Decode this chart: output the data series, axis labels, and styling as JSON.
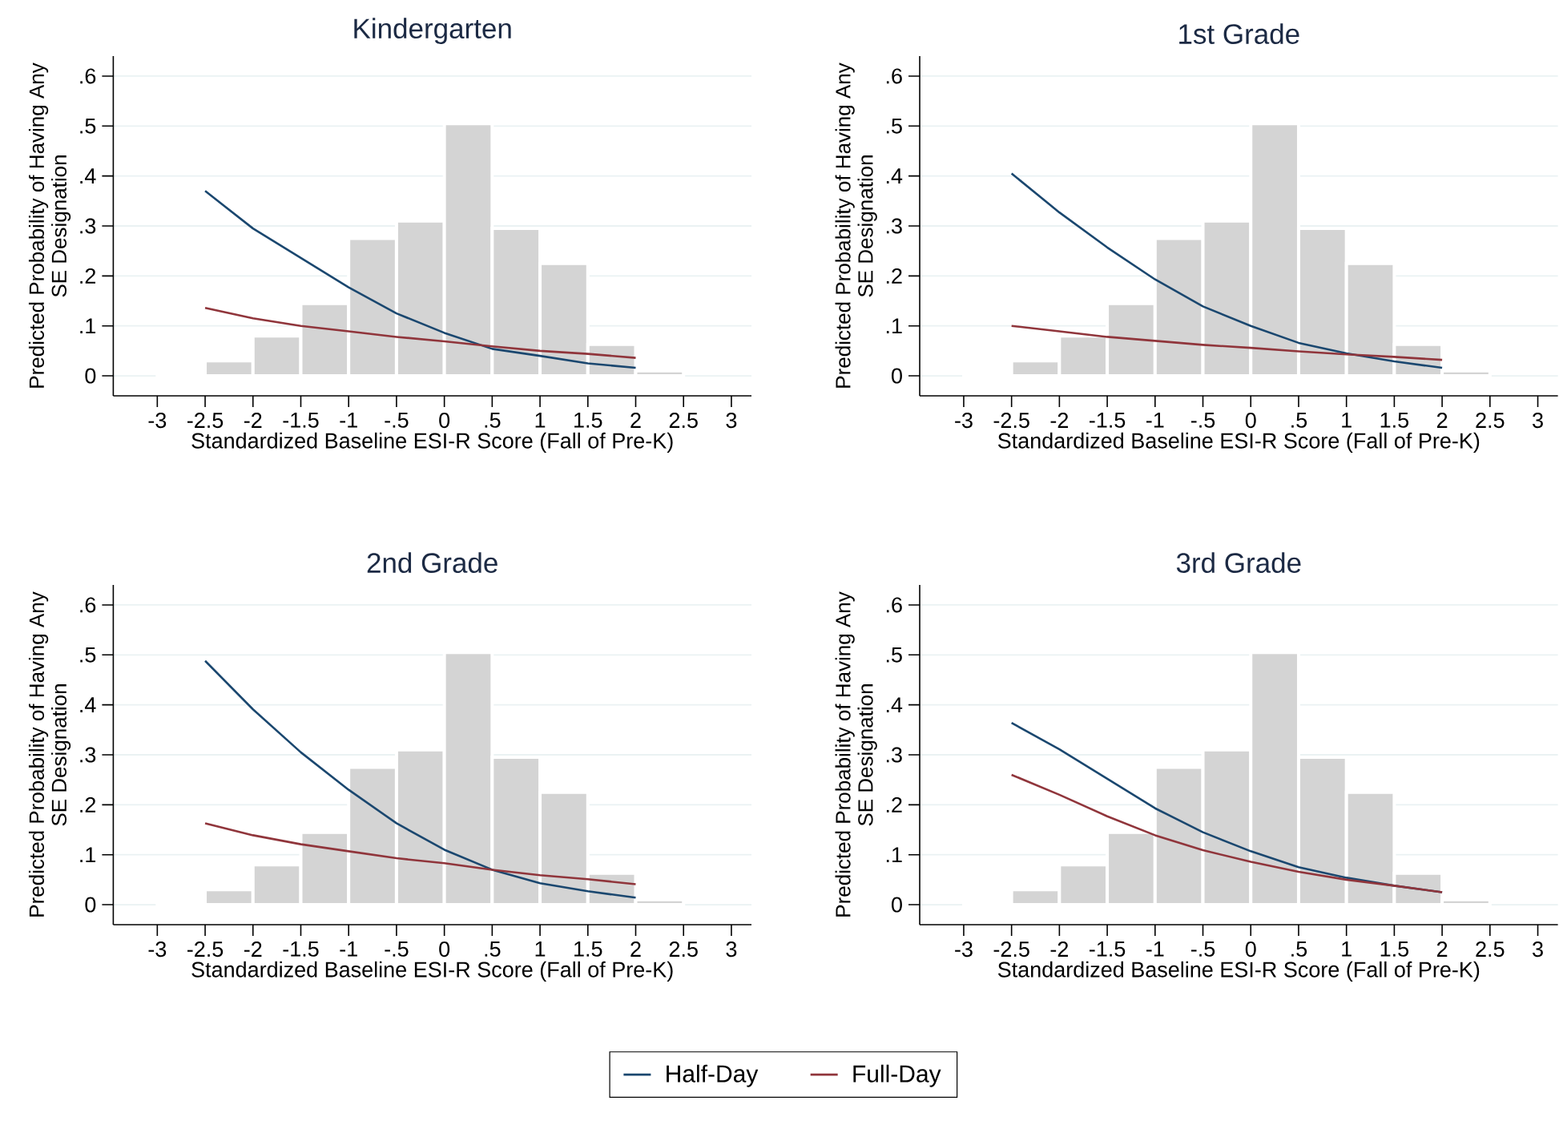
{
  "chart_data": [
    {
      "type": "line",
      "title": "Kindergarten",
      "xlabel": "Standardized Baseline ESI-R Score (Fall of Pre-K)",
      "ylabel": "Predicted Probability of Having Any SE Designation",
      "xlim": [
        -3.46,
        3.21
      ],
      "ylim": [
        -0.04,
        0.64
      ],
      "xticks": [
        -3,
        {
          "value": -2.5,
          "label": "-2.5"
        },
        -2,
        {
          "value": -1.5,
          "label": "-1.5"
        },
        -1,
        {
          "value": -0.5,
          "label": "-.5"
        },
        0,
        {
          "value": 0.5,
          "label": ".5"
        },
        1,
        {
          "value": 1.5,
          "label": "1.5"
        },
        2,
        {
          "value": 2.5,
          "label": "2.5"
        },
        3
      ],
      "yticks": [
        0,
        {
          "value": 0.1,
          "label": ".1"
        },
        {
          "value": 0.2,
          "label": ".2"
        },
        {
          "value": 0.3,
          "label": ".3"
        },
        {
          "value": 0.4,
          "label": ".4"
        },
        {
          "value": 0.5,
          "label": ".5"
        },
        {
          "value": 0.6,
          "label": ".6"
        }
      ],
      "grid": "y",
      "x": [
        -2.5,
        -2,
        -1.5,
        -1,
        -0.5,
        0,
        0.5,
        1,
        1.5,
        2
      ],
      "series": [
        {
          "type": "histogram",
          "color": "#d4d4d4",
          "bins": [
            -3,
            -2.5,
            -2,
            -1.5,
            -1,
            -0.5,
            0,
            0.5,
            1,
            1.5,
            2,
            2.5
          ],
          "values": [
            0.002,
            0.03,
            0.08,
            0.145,
            0.275,
            0.31,
            0.505,
            0.295,
            0.225,
            0.063,
            0.01
          ]
        },
        {
          "color": "#1a476f",
          "values": [
            0.37,
            0.295,
            0.236,
            0.177,
            0.125,
            0.086,
            0.054,
            0.04,
            0.025,
            0.016
          ]
        },
        {
          "color": "#90353b",
          "values": [
            0.136,
            0.115,
            0.1,
            0.089,
            0.078,
            0.069,
            0.059,
            0.05,
            0.044,
            0.036
          ]
        }
      ]
    },
    {
      "type": "line",
      "title": "1st Grade",
      "xlabel": "Standardized Baseline ESI-R Score (Fall of Pre-K)",
      "ylabel": "Predicted Probability of Having Any SE Designation",
      "xlim": [
        -3.46,
        3.21
      ],
      "ylim": [
        -0.04,
        0.64
      ],
      "xticks": [
        -3,
        {
          "value": -2.5,
          "label": "-2.5"
        },
        -2,
        {
          "value": -1.5,
          "label": "-1.5"
        },
        -1,
        {
          "value": -0.5,
          "label": "-.5"
        },
        0,
        {
          "value": 0.5,
          "label": ".5"
        },
        1,
        {
          "value": 1.5,
          "label": "1.5"
        },
        2,
        {
          "value": 2.5,
          "label": "2.5"
        },
        3
      ],
      "yticks": [
        0,
        {
          "value": 0.1,
          "label": ".1"
        },
        {
          "value": 0.2,
          "label": ".2"
        },
        {
          "value": 0.3,
          "label": ".3"
        },
        {
          "value": 0.4,
          "label": ".4"
        },
        {
          "value": 0.5,
          "label": ".5"
        },
        {
          "value": 0.6,
          "label": ".6"
        }
      ],
      "grid": "y",
      "x": [
        -2.5,
        -2,
        -1.5,
        -1,
        -0.5,
        0,
        0.5,
        1,
        1.5,
        2
      ],
      "series": [
        {
          "type": "histogram",
          "color": "#d4d4d4",
          "bins": [
            -3,
            -2.5,
            -2,
            -1.5,
            -1,
            -0.5,
            0,
            0.5,
            1,
            1.5,
            2,
            2.5
          ],
          "values": [
            0.002,
            0.03,
            0.08,
            0.145,
            0.275,
            0.31,
            0.505,
            0.295,
            0.225,
            0.063,
            0.01
          ]
        },
        {
          "color": "#1a476f",
          "values": [
            0.405,
            0.327,
            0.257,
            0.193,
            0.139,
            0.1,
            0.066,
            0.045,
            0.029,
            0.016
          ]
        },
        {
          "color": "#90353b",
          "values": [
            0.1,
            0.089,
            0.078,
            0.07,
            0.062,
            0.056,
            0.049,
            0.043,
            0.038,
            0.032
          ]
        }
      ]
    },
    {
      "type": "line",
      "title": "2nd Grade",
      "xlabel": "Standardized Baseline ESI-R Score (Fall of Pre-K)",
      "ylabel": "Predicted Probability of Having Any SE Designation",
      "xlim": [
        -3.46,
        3.21
      ],
      "ylim": [
        -0.04,
        0.64
      ],
      "xticks": [
        -3,
        {
          "value": -2.5,
          "label": "-2.5"
        },
        -2,
        {
          "value": -1.5,
          "label": "-1.5"
        },
        -1,
        {
          "value": -0.5,
          "label": "-.5"
        },
        0,
        {
          "value": 0.5,
          "label": ".5"
        },
        1,
        {
          "value": 1.5,
          "label": "1.5"
        },
        2,
        {
          "value": 2.5,
          "label": "2.5"
        },
        3
      ],
      "yticks": [
        0,
        {
          "value": 0.1,
          "label": ".1"
        },
        {
          "value": 0.2,
          "label": ".2"
        },
        {
          "value": 0.3,
          "label": ".3"
        },
        {
          "value": 0.4,
          "label": ".4"
        },
        {
          "value": 0.5,
          "label": ".5"
        },
        {
          "value": 0.6,
          "label": ".6"
        }
      ],
      "grid": "y",
      "x": [
        -2.5,
        -2,
        -1.5,
        -1,
        -0.5,
        0,
        0.5,
        1,
        1.5,
        2
      ],
      "series": [
        {
          "type": "histogram",
          "color": "#d4d4d4",
          "bins": [
            -3,
            -2.5,
            -2,
            -1.5,
            -1,
            -0.5,
            0,
            0.5,
            1,
            1.5,
            2,
            2.5
          ],
          "values": [
            0.002,
            0.03,
            0.08,
            0.145,
            0.275,
            0.31,
            0.505,
            0.295,
            0.225,
            0.063,
            0.01
          ]
        },
        {
          "color": "#1a476f",
          "values": [
            0.488,
            0.391,
            0.305,
            0.23,
            0.163,
            0.11,
            0.07,
            0.043,
            0.027,
            0.014
          ]
        },
        {
          "color": "#90353b",
          "values": [
            0.163,
            0.139,
            0.121,
            0.107,
            0.093,
            0.083,
            0.07,
            0.059,
            0.051,
            0.041
          ]
        }
      ]
    },
    {
      "type": "line",
      "title": "3rd Grade",
      "xlabel": "Standardized Baseline ESI-R Score (Fall of Pre-K)",
      "ylabel": "Predicted Probability of Having Any SE Designation",
      "xlim": [
        -3.46,
        3.21
      ],
      "ylim": [
        -0.04,
        0.64
      ],
      "xticks": [
        -3,
        {
          "value": -2.5,
          "label": "-2.5"
        },
        -2,
        {
          "value": -1.5,
          "label": "-1.5"
        },
        -1,
        {
          "value": -0.5,
          "label": "-.5"
        },
        0,
        {
          "value": 0.5,
          "label": ".5"
        },
        1,
        {
          "value": 1.5,
          "label": "1.5"
        },
        2,
        {
          "value": 2.5,
          "label": "2.5"
        },
        3
      ],
      "yticks": [
        0,
        {
          "value": 0.1,
          "label": ".1"
        },
        {
          "value": 0.2,
          "label": ".2"
        },
        {
          "value": 0.3,
          "label": ".3"
        },
        {
          "value": 0.4,
          "label": ".4"
        },
        {
          "value": 0.5,
          "label": ".5"
        },
        {
          "value": 0.6,
          "label": ".6"
        }
      ],
      "grid": "y",
      "legend": "bottom",
      "x": [
        -2.5,
        -2,
        -1.5,
        -1,
        -0.5,
        0,
        0.5,
        1,
        1.5,
        2
      ],
      "series": [
        {
          "type": "histogram",
          "color": "#d4d4d4",
          "bins": [
            -3,
            -2.5,
            -2,
            -1.5,
            -1,
            -0.5,
            0,
            0.5,
            1,
            1.5,
            2,
            2.5
          ],
          "values": [
            0.002,
            0.03,
            0.08,
            0.145,
            0.275,
            0.31,
            0.505,
            0.295,
            0.225,
            0.063,
            0.01
          ]
        },
        {
          "name": "Half-Day",
          "color": "#1a476f",
          "values": [
            0.364,
            0.311,
            0.252,
            0.193,
            0.145,
            0.107,
            0.075,
            0.054,
            0.038,
            0.025
          ]
        },
        {
          "name": "Full-Day",
          "color": "#90353b",
          "values": [
            0.26,
            0.22,
            0.177,
            0.139,
            0.109,
            0.086,
            0.066,
            0.05,
            0.038,
            0.025
          ]
        }
      ]
    }
  ]
}
